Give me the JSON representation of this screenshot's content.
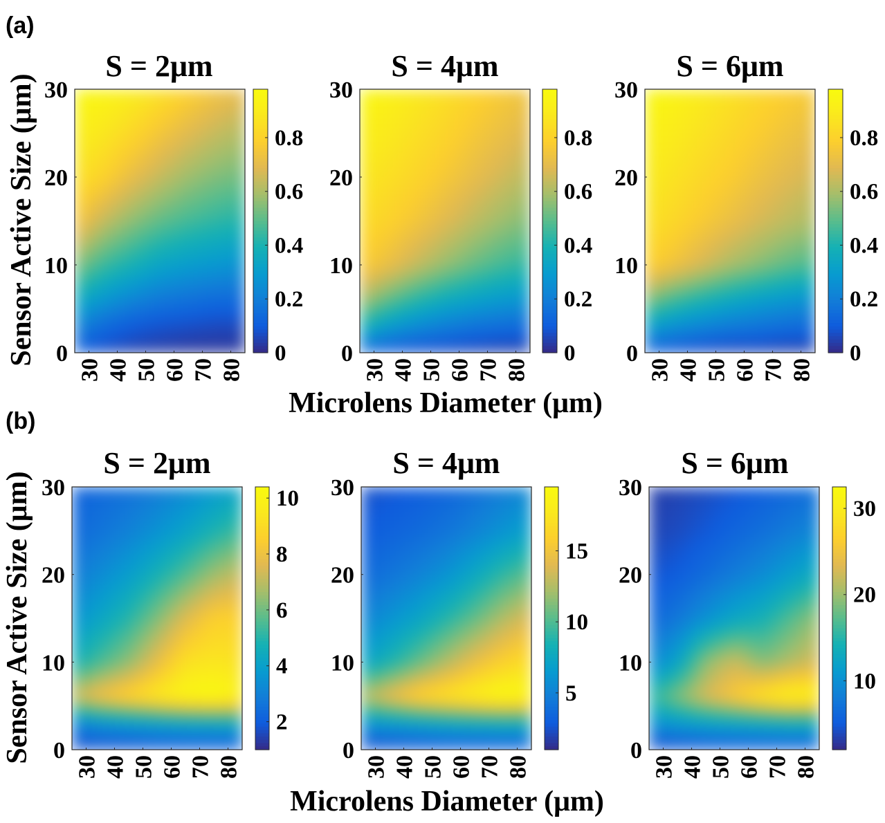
{
  "figure": {
    "xlabel": "Microlens Diameter (μm)",
    "ylabel": "Sensor Active Size (μm)"
  },
  "chart_data": [
    {
      "type": "heatmap",
      "panel": "(a)",
      "title": "S = 2μm",
      "xlabel": "Microlens Diameter (μm)",
      "ylabel": "Sensor Active Size (μm)",
      "xticks": [
        30,
        40,
        50,
        60,
        70,
        80
      ],
      "yticks": [
        0,
        10,
        20,
        30
      ],
      "xlim": [
        25,
        85
      ],
      "ylim": [
        0,
        30
      ],
      "colorbar_ticks": [
        "0",
        "0.2",
        "0.4",
        "0.6",
        "0.8"
      ],
      "clim": [
        0,
        0.98
      ],
      "grid_x": [
        25,
        35,
        45,
        55,
        65,
        75,
        85
      ],
      "grid_y": [
        0,
        3,
        6,
        10,
        15,
        20,
        25,
        30
      ],
      "values": [
        [
          0.1,
          0.06,
          0.04,
          0.03,
          0.02,
          0.02,
          0.02
        ],
        [
          0.22,
          0.14,
          0.1,
          0.08,
          0.07,
          0.06,
          0.06
        ],
        [
          0.36,
          0.28,
          0.22,
          0.18,
          0.16,
          0.14,
          0.14
        ],
        [
          0.55,
          0.45,
          0.39,
          0.33,
          0.3,
          0.28,
          0.26
        ],
        [
          0.76,
          0.64,
          0.56,
          0.5,
          0.46,
          0.43,
          0.41
        ],
        [
          0.86,
          0.8,
          0.71,
          0.64,
          0.58,
          0.54,
          0.52
        ],
        [
          0.92,
          0.88,
          0.82,
          0.75,
          0.69,
          0.64,
          0.61
        ],
        [
          0.97,
          0.95,
          0.91,
          0.86,
          0.8,
          0.74,
          0.7
        ]
      ]
    },
    {
      "type": "heatmap",
      "panel": "(a)",
      "title": "S = 4μm",
      "xticks": [
        30,
        40,
        50,
        60,
        70,
        80
      ],
      "yticks": [
        0,
        10,
        20,
        30
      ],
      "xlim": [
        25,
        85
      ],
      "ylim": [
        0,
        30
      ],
      "colorbar_ticks": [
        "0",
        "0.2",
        "0.4",
        "0.6",
        "0.8"
      ],
      "clim": [
        0,
        0.98
      ],
      "grid_x": [
        25,
        35,
        45,
        55,
        65,
        75,
        85
      ],
      "grid_y": [
        0,
        3,
        6,
        10,
        15,
        20,
        25,
        30
      ],
      "values": [
        [
          0.12,
          0.08,
          0.06,
          0.05,
          0.04,
          0.03,
          0.03
        ],
        [
          0.4,
          0.3,
          0.24,
          0.2,
          0.17,
          0.15,
          0.14
        ],
        [
          0.6,
          0.5,
          0.42,
          0.36,
          0.32,
          0.29,
          0.27
        ],
        [
          0.78,
          0.72,
          0.64,
          0.57,
          0.51,
          0.46,
          0.43
        ],
        [
          0.84,
          0.8,
          0.75,
          0.69,
          0.63,
          0.58,
          0.54
        ],
        [
          0.88,
          0.85,
          0.81,
          0.76,
          0.71,
          0.66,
          0.62
        ],
        [
          0.92,
          0.89,
          0.85,
          0.81,
          0.76,
          0.72,
          0.68
        ],
        [
          0.97,
          0.93,
          0.89,
          0.85,
          0.81,
          0.77,
          0.73
        ]
      ]
    },
    {
      "type": "heatmap",
      "panel": "(a)",
      "title": "S = 6μm",
      "xticks": [
        30,
        40,
        50,
        60,
        70,
        80
      ],
      "yticks": [
        0,
        10,
        20,
        30
      ],
      "xlim": [
        25,
        85
      ],
      "ylim": [
        0,
        30
      ],
      "colorbar_ticks": [
        "0",
        "0.2",
        "0.4",
        "0.6",
        "0.8"
      ],
      "clim": [
        0,
        0.98
      ],
      "grid_x": [
        25,
        35,
        45,
        55,
        65,
        75,
        85
      ],
      "grid_y": [
        0,
        3,
        6,
        10,
        15,
        20,
        25,
        30
      ],
      "values": [
        [
          0.1,
          0.07,
          0.05,
          0.04,
          0.04,
          0.03,
          0.03
        ],
        [
          0.32,
          0.26,
          0.22,
          0.19,
          0.17,
          0.15,
          0.14
        ],
        [
          0.55,
          0.46,
          0.4,
          0.35,
          0.31,
          0.28,
          0.26
        ],
        [
          0.8,
          0.74,
          0.67,
          0.6,
          0.55,
          0.5,
          0.47
        ],
        [
          0.86,
          0.82,
          0.77,
          0.72,
          0.67,
          0.63,
          0.6
        ],
        [
          0.9,
          0.86,
          0.82,
          0.78,
          0.73,
          0.69,
          0.66
        ],
        [
          0.93,
          0.9,
          0.86,
          0.82,
          0.78,
          0.74,
          0.71
        ],
        [
          0.97,
          0.94,
          0.9,
          0.86,
          0.82,
          0.79,
          0.76
        ]
      ]
    },
    {
      "type": "heatmap",
      "panel": "(b)",
      "title": "S = 2μm",
      "xticks": [
        30,
        40,
        50,
        60,
        70,
        80
      ],
      "yticks": [
        0,
        10,
        20,
        30
      ],
      "xlim": [
        25,
        85
      ],
      "ylim": [
        0,
        30
      ],
      "colorbar_ticks": [
        "2",
        "4",
        "6",
        "8",
        "10"
      ],
      "clim": [
        1,
        10.4
      ],
      "grid_x": [
        25,
        35,
        45,
        55,
        65,
        75,
        85
      ],
      "grid_y": [
        0,
        3,
        6,
        10,
        15,
        20,
        25,
        30
      ],
      "values": [
        [
          1.5,
          1.6,
          1.6,
          1.7,
          1.7,
          1.7,
          1.7
        ],
        [
          3.0,
          3.5,
          3.8,
          4.0,
          4.2,
          4.3,
          4.4
        ],
        [
          7.2,
          8.2,
          8.9,
          9.6,
          10.2,
          10.4,
          9.9
        ],
        [
          4.6,
          5.5,
          6.4,
          7.8,
          9.2,
          9.4,
          9.2
        ],
        [
          3.5,
          4.2,
          5.0,
          6.2,
          7.6,
          8.6,
          8.6
        ],
        [
          2.8,
          3.3,
          3.9,
          4.7,
          5.6,
          6.6,
          7.2
        ],
        [
          2.3,
          2.6,
          3.0,
          3.5,
          4.1,
          4.8,
          5.4
        ],
        [
          2.1,
          2.3,
          2.5,
          2.8,
          3.2,
          3.7,
          4.1
        ]
      ]
    },
    {
      "type": "heatmap",
      "panel": "(b)",
      "title": "S = 4μm",
      "xticks": [
        30,
        40,
        50,
        60,
        70,
        80
      ],
      "yticks": [
        0,
        10,
        20,
        30
      ],
      "xlim": [
        25,
        85
      ],
      "ylim": [
        0,
        30
      ],
      "colorbar_ticks": [
        "5",
        "10",
        "15"
      ],
      "clim": [
        1,
        19.5
      ],
      "grid_x": [
        25,
        35,
        45,
        55,
        65,
        75,
        85
      ],
      "grid_y": [
        0,
        3,
        6,
        10,
        15,
        20,
        25,
        30
      ],
      "values": [
        [
          2.0,
          2.2,
          2.3,
          2.4,
          2.4,
          2.5,
          2.5
        ],
        [
          6.0,
          6.5,
          7.0,
          7.5,
          7.8,
          8.0,
          8.0
        ],
        [
          12.5,
          14.5,
          16.5,
          17.5,
          18.5,
          19.5,
          19.0
        ],
        [
          7.0,
          8.5,
          10.5,
          12.5,
          14.5,
          16.0,
          17.0
        ],
        [
          5.0,
          6.0,
          7.2,
          8.8,
          10.5,
          12.5,
          14.0
        ],
        [
          3.6,
          4.2,
          5.0,
          6.0,
          7.5,
          9.2,
          10.5
        ],
        [
          2.8,
          3.2,
          3.6,
          4.2,
          5.0,
          6.0,
          7.0
        ],
        [
          2.4,
          2.6,
          2.9,
          3.3,
          3.9,
          4.6,
          5.2
        ]
      ]
    },
    {
      "type": "heatmap",
      "panel": "(b)",
      "title": "S = 6μm",
      "xticks": [
        30,
        40,
        50,
        60,
        70,
        80
      ],
      "yticks": [
        0,
        10,
        20,
        30
      ],
      "xlim": [
        25,
        85
      ],
      "ylim": [
        0,
        30
      ],
      "colorbar_ticks": [
        "10",
        "20",
        "30"
      ],
      "clim": [
        2,
        32.5
      ],
      "grid_x": [
        25,
        35,
        45,
        55,
        65,
        75,
        85
      ],
      "grid_y": [
        0,
        3,
        6,
        10,
        15,
        20,
        25,
        30
      ],
      "values": [
        [
          3.5,
          4.0,
          4.2,
          4.4,
          4.5,
          4.6,
          4.6
        ],
        [
          10.0,
          11.0,
          12.0,
          12.5,
          13.0,
          13.5,
          13.5
        ],
        [
          15.0,
          19.0,
          23.0,
          26.0,
          29.5,
          31.5,
          31.0
        ],
        [
          9.0,
          12.0,
          19.5,
          22.5,
          19.0,
          21.0,
          23.0
        ],
        [
          6.0,
          7.5,
          10.0,
          12.5,
          14.0,
          17.0,
          20.0
        ],
        [
          4.5,
          5.2,
          6.5,
          8.0,
          9.5,
          11.5,
          13.5
        ],
        [
          3.6,
          4.0,
          4.8,
          5.8,
          6.8,
          8.0,
          9.2
        ],
        [
          3.2,
          3.5,
          4.0,
          4.6,
          5.3,
          6.0,
          6.8
        ]
      ]
    }
  ]
}
